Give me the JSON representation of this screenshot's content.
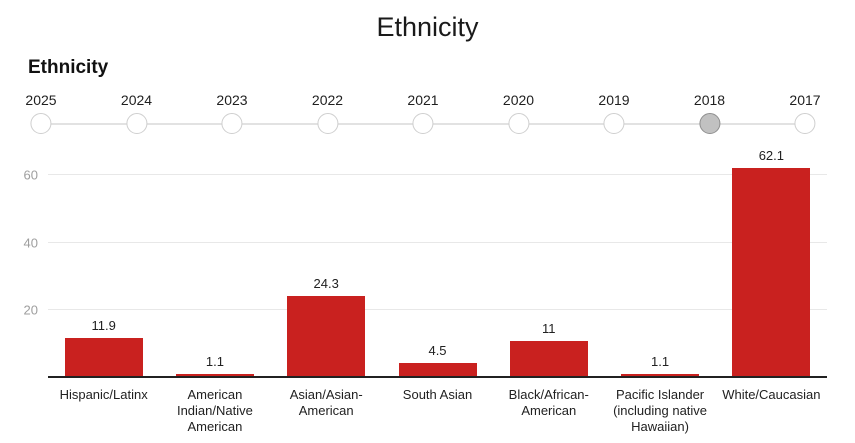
{
  "header": {
    "title": "Ethnicity"
  },
  "section": {
    "heading": "Ethnicity"
  },
  "timeline": {
    "years": [
      "2025",
      "2024",
      "2023",
      "2022",
      "2021",
      "2020",
      "2019",
      "2018",
      "2017"
    ],
    "selected_year": "2018"
  },
  "chart_data": {
    "type": "bar",
    "title": "Ethnicity",
    "categories": [
      "Hispanic/Latinx",
      "American Indian/Native American",
      "Asian/Asian-American",
      "South Asian",
      "Black/African-American",
      "Pacific Islander (including native Hawaiian)",
      "White/Caucasian"
    ],
    "values": [
      11.9,
      1.1,
      24.3,
      4.5,
      11,
      1.1,
      62.1
    ],
    "value_labels": [
      "11.9",
      "1.1",
      "24.3",
      "4.5",
      "11",
      "1.1",
      "62.1"
    ],
    "y_ticks": [
      20,
      40,
      60
    ],
    "ylim": [
      0,
      67.5
    ],
    "xlabel": "",
    "ylabel": "",
    "grid": true,
    "legend": "none",
    "bar_color": "#c9211f"
  },
  "colors": {
    "bar_red": "#c9211f",
    "axis_line": "#212121",
    "gridline": "#e8e8e8",
    "tick_label": "#9e9e9e",
    "timeline_track": "#e2e2e2",
    "dot_border": "#cfcfcf",
    "selected_dot_fill": "#c1c1c1"
  }
}
